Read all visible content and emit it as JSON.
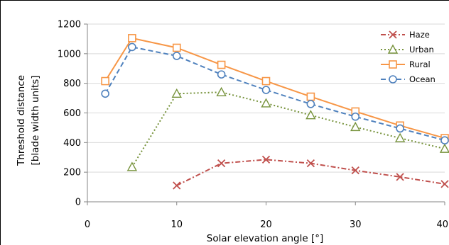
{
  "chart_data": {
    "type": "line",
    "title": "",
    "xlabel": "Solar elevation angle [°]",
    "ylabel_lines": [
      "Threshold distance",
      "[blade width units]"
    ],
    "xlim": [
      0,
      40
    ],
    "ylim": [
      0,
      1200
    ],
    "xticks": [
      "0",
      "10",
      "20",
      "30",
      "40"
    ],
    "yticks": [
      "0",
      "200",
      "400",
      "600",
      "800",
      "1000",
      "1200"
    ],
    "grid": "horizontal",
    "legend_position": "top-right",
    "series": [
      {
        "name": "Haze",
        "color": "#c0504d",
        "marker": "x",
        "dash": "dash-dot",
        "points": [
          [
            10,
            110
          ],
          [
            15,
            260
          ],
          [
            20,
            285
          ],
          [
            25,
            260
          ],
          [
            30,
            212
          ],
          [
            35,
            168
          ],
          [
            40,
            120
          ]
        ]
      },
      {
        "name": "Urban",
        "color": "#77933c",
        "marker": "triangle",
        "dash": "dot",
        "points": [
          [
            5,
            235
          ],
          [
            10,
            730
          ],
          [
            15,
            740
          ],
          [
            20,
            665
          ],
          [
            25,
            585
          ],
          [
            30,
            505
          ],
          [
            35,
            430
          ],
          [
            40,
            358
          ]
        ]
      },
      {
        "name": "Rural",
        "color": "#f79646",
        "marker": "square",
        "dash": "solid",
        "points": [
          [
            2,
            815
          ],
          [
            5,
            1105
          ],
          [
            10,
            1040
          ],
          [
            15,
            925
          ],
          [
            20,
            815
          ],
          [
            25,
            710
          ],
          [
            30,
            610
          ],
          [
            35,
            515
          ],
          [
            40,
            430
          ]
        ]
      },
      {
        "name": "Ocean",
        "color": "#4f81bd",
        "marker": "circle",
        "dash": "dash",
        "points": [
          [
            2,
            730
          ],
          [
            5,
            1045
          ],
          [
            10,
            985
          ],
          [
            15,
            860
          ],
          [
            20,
            755
          ],
          [
            25,
            660
          ],
          [
            30,
            575
          ],
          [
            35,
            495
          ],
          [
            40,
            415
          ]
        ]
      }
    ]
  }
}
